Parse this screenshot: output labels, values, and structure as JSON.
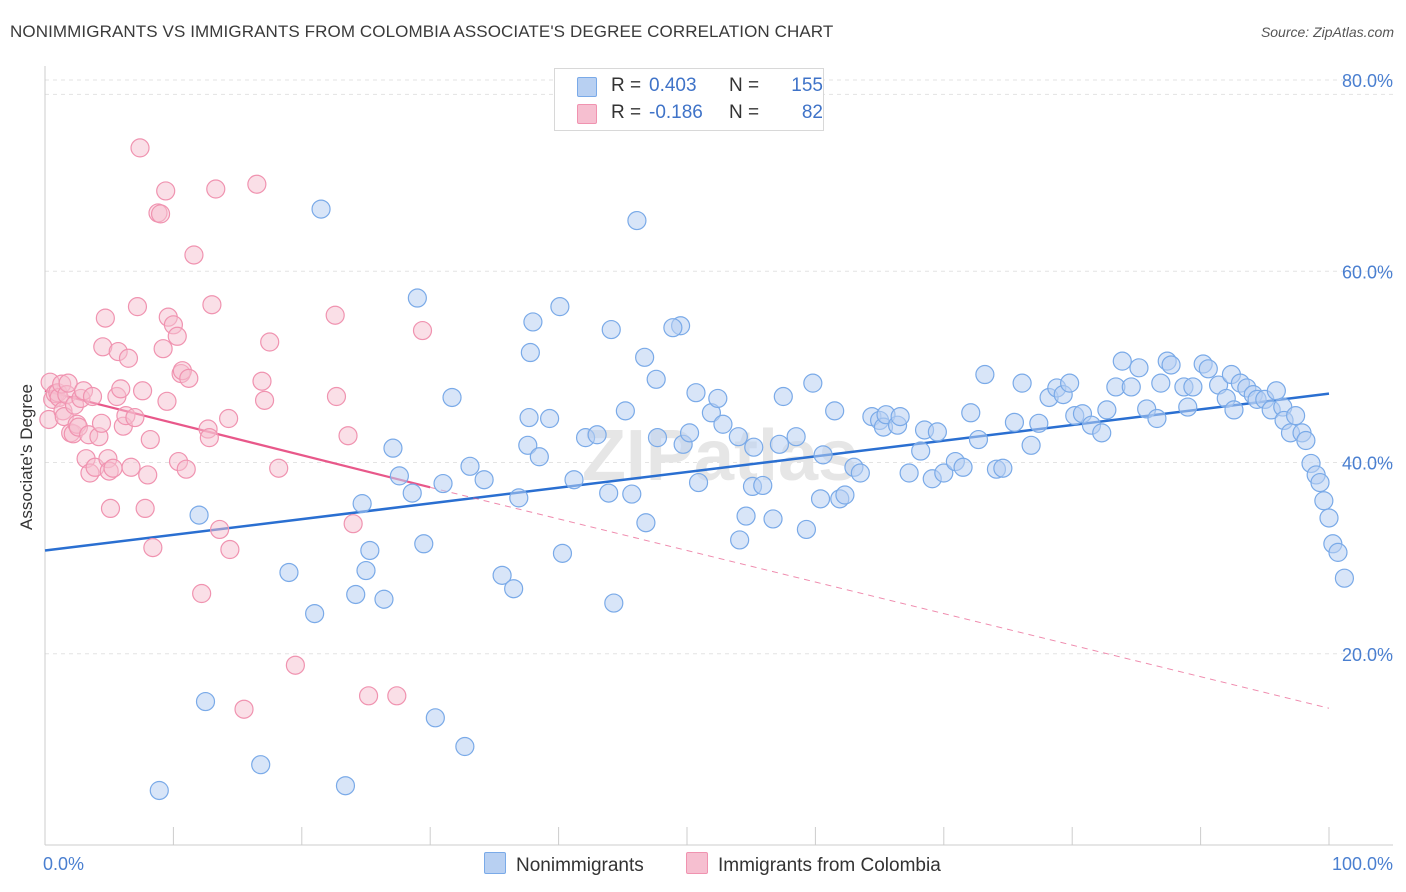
{
  "title": "NONIMMIGRANTS VS IMMIGRANTS FROM COLOMBIA ASSOCIATE'S DEGREE CORRELATION CHART",
  "source": "Source: ZipAtlas.com",
  "watermark": "ZIPatlas",
  "legend": {
    "rows": [
      {
        "r_label": "R =",
        "r_value": "0.403",
        "n_label": "N =",
        "n_value": "155",
        "color": "#b8d0f2"
      },
      {
        "r_label": "R =",
        "r_value": "-0.186",
        "n_label": "N =",
        "n_value": "82",
        "color": "#f6bfd0"
      }
    ]
  },
  "bottom_legend": {
    "series1": "Nonimmigrants",
    "series2": "Immigrants from Colombia"
  },
  "chart_data": {
    "type": "scatter",
    "title": "NONIMMIGRANTS VS IMMIGRANTS FROM COLOMBIA ASSOCIATE'S DEGREE CORRELATION CHART",
    "xlabel": "",
    "ylabel": "Associate's Degree",
    "xlim": [
      0,
      100
    ],
    "ylim": [
      0,
      80
    ],
    "x_tick_labels": [
      "0.0%",
      "100.0%"
    ],
    "y_ticks": [
      20,
      40,
      60,
      80
    ],
    "y_tick_labels": [
      "20.0%",
      "40.0%",
      "60.0%",
      "80.0%"
    ],
    "grid": true,
    "legend_position": "top-center",
    "colors": {
      "nonimmigrants": "#7aaae8",
      "nonimmigrants_fill": "#b8d0f2",
      "nonimmigrants_line": "#2a6fd1",
      "colombia": "#f093b0",
      "colombia_fill": "#f6bfd0",
      "colombia_line": "#e8588a"
    },
    "series": [
      {
        "name": "Nonimmigrants",
        "trend": {
          "x": [
            0,
            100
          ],
          "y": [
            30.8,
            47.2
          ]
        },
        "points": [
          [
            12,
            34.5
          ],
          [
            21.5,
            66.5
          ],
          [
            19,
            28.5
          ],
          [
            21,
            24.2
          ],
          [
            12.5,
            15
          ],
          [
            8.9,
            5.7
          ],
          [
            16.8,
            8.4
          ],
          [
            23.4,
            6.2
          ],
          [
            24.7,
            35.7
          ],
          [
            25.3,
            30.8
          ],
          [
            26.4,
            25.7
          ],
          [
            25,
            28.7
          ],
          [
            24.2,
            26.2
          ],
          [
            27.1,
            41.5
          ],
          [
            27.6,
            38.6
          ],
          [
            28.6,
            36.8
          ],
          [
            29.5,
            31.5
          ],
          [
            29,
            57.2
          ],
          [
            30.4,
            13.3
          ],
          [
            31,
            37.8
          ],
          [
            31.7,
            46.8
          ],
          [
            32.7,
            10.3
          ],
          [
            33.1,
            39.6
          ],
          [
            34.2,
            38.2
          ],
          [
            35.6,
            28.2
          ],
          [
            36.5,
            26.8
          ],
          [
            36.9,
            36.3
          ],
          [
            37.7,
            44.7
          ],
          [
            37.6,
            41.8
          ],
          [
            37.8,
            51.5
          ],
          [
            38,
            54.7
          ],
          [
            38.5,
            40.6
          ],
          [
            39.3,
            44.6
          ],
          [
            40.1,
            56.3
          ],
          [
            40.3,
            30.5
          ],
          [
            41.2,
            38.2
          ],
          [
            42.1,
            42.6
          ],
          [
            43,
            42.9
          ],
          [
            44.1,
            53.9
          ],
          [
            43.9,
            36.8
          ],
          [
            44.3,
            25.3
          ],
          [
            45.2,
            45.4
          ],
          [
            45.7,
            36.7
          ],
          [
            46.7,
            51
          ],
          [
            47.6,
            48.7
          ],
          [
            46.1,
            65.3
          ],
          [
            46.8,
            33.7
          ],
          [
            47.7,
            42.6
          ],
          [
            49.5,
            54.3
          ],
          [
            48.9,
            54.1
          ],
          [
            49.7,
            41.9
          ],
          [
            50.2,
            43.1
          ],
          [
            50.7,
            47.3
          ],
          [
            50.9,
            37.9
          ],
          [
            51.9,
            45.2
          ],
          [
            52.4,
            46.7
          ],
          [
            52.8,
            44
          ],
          [
            54,
            42.7
          ],
          [
            54.1,
            31.9
          ],
          [
            54.6,
            34.4
          ],
          [
            55.1,
            37.5
          ],
          [
            55.2,
            41.6
          ],
          [
            55.9,
            37.6
          ],
          [
            56.7,
            34.1
          ],
          [
            57.2,
            41.9
          ],
          [
            57.5,
            46.9
          ],
          [
            58.5,
            42.7
          ],
          [
            59.3,
            33
          ],
          [
            59.8,
            48.3
          ],
          [
            60.4,
            36.2
          ],
          [
            60.6,
            40.8
          ],
          [
            61.5,
            45.4
          ],
          [
            61.9,
            36.2
          ],
          [
            62.3,
            36.6
          ],
          [
            63,
            39.5
          ],
          [
            63.5,
            38.9
          ],
          [
            64.4,
            44.8
          ],
          [
            65,
            44.4
          ],
          [
            65.3,
            43.7
          ],
          [
            65.5,
            45
          ],
          [
            66.4,
            43.9
          ],
          [
            66.6,
            44.8
          ],
          [
            67.3,
            38.9
          ],
          [
            68.2,
            41.2
          ],
          [
            68.5,
            43.4
          ],
          [
            69.5,
            43.2
          ],
          [
            69.1,
            38.3
          ],
          [
            70,
            38.9
          ],
          [
            70.9,
            40.1
          ],
          [
            71.5,
            39.5
          ],
          [
            72.1,
            45.2
          ],
          [
            72.7,
            42.4
          ],
          [
            73.2,
            49.2
          ],
          [
            74.1,
            39.3
          ],
          [
            74.6,
            39.4
          ],
          [
            75.5,
            44.2
          ],
          [
            76.1,
            48.3
          ],
          [
            76.8,
            41.8
          ],
          [
            77.4,
            44.1
          ],
          [
            78.2,
            46.8
          ],
          [
            78.8,
            47.8
          ],
          [
            79.3,
            47.1
          ],
          [
            79.8,
            48.3
          ],
          [
            80.2,
            44.9
          ],
          [
            80.8,
            45.1
          ],
          [
            81.5,
            43.9
          ],
          [
            82.3,
            43.1
          ],
          [
            82.7,
            45.5
          ],
          [
            83.4,
            47.9
          ],
          [
            83.9,
            50.6
          ],
          [
            84.6,
            47.9
          ],
          [
            85.2,
            49.9
          ],
          [
            85.8,
            45.6
          ],
          [
            86.6,
            44.6
          ],
          [
            86.9,
            48.3
          ],
          [
            87.4,
            50.6
          ],
          [
            87.7,
            50.2
          ],
          [
            88.7,
            47.9
          ],
          [
            89,
            45.8
          ],
          [
            89.4,
            47.9
          ],
          [
            90.2,
            50.3
          ],
          [
            90.6,
            49.8
          ],
          [
            91.4,
            48.1
          ],
          [
            92,
            46.7
          ],
          [
            92.4,
            49.2
          ],
          [
            92.6,
            45.5
          ],
          [
            93.1,
            48.3
          ],
          [
            93.6,
            47.8
          ],
          [
            94.1,
            47.1
          ],
          [
            94.4,
            46.6
          ],
          [
            95,
            46.6
          ],
          [
            95.5,
            45.5
          ],
          [
            95.9,
            47.5
          ],
          [
            96.4,
            45.8
          ],
          [
            96.5,
            44.4
          ],
          [
            97,
            43.1
          ],
          [
            97.4,
            44.9
          ],
          [
            97.9,
            43.1
          ],
          [
            98.2,
            42.3
          ],
          [
            98.6,
            39.9
          ],
          [
            99,
            38.7
          ],
          [
            99.3,
            37.9
          ],
          [
            99.6,
            36
          ],
          [
            100,
            34.2
          ],
          [
            100.3,
            31.5
          ],
          [
            100.7,
            30.6
          ],
          [
            101.2,
            27.9
          ]
        ]
      },
      {
        "name": "Immigrants from Colombia",
        "trend": {
          "x": [
            0,
            30
          ],
          "y": [
            47.5,
            37.4
          ]
        },
        "trend_extension": {
          "x": [
            30,
            100
          ],
          "y": [
            37.4,
            14.3
          ]
        },
        "points": [
          [
            0.3,
            44.5
          ],
          [
            0.4,
            48.4
          ],
          [
            0.6,
            46.6
          ],
          [
            0.8,
            47.2
          ],
          [
            1,
            47.3
          ],
          [
            1.1,
            46.8
          ],
          [
            1.3,
            48.2
          ],
          [
            1.4,
            45.4
          ],
          [
            1.5,
            44.8
          ],
          [
            1.7,
            47.1
          ],
          [
            1.8,
            48.3
          ],
          [
            2,
            43.1
          ],
          [
            2.2,
            43
          ],
          [
            2.3,
            46
          ],
          [
            2.5,
            44
          ],
          [
            2.6,
            43.7
          ],
          [
            2.8,
            46.7
          ],
          [
            3,
            47.5
          ],
          [
            3.2,
            40.4
          ],
          [
            3.4,
            42.9
          ],
          [
            3.5,
            38.9
          ],
          [
            3.7,
            46.9
          ],
          [
            3.9,
            39.5
          ],
          [
            4.2,
            42.7
          ],
          [
            4.4,
            44.1
          ],
          [
            4.5,
            52.1
          ],
          [
            4.7,
            55.1
          ],
          [
            4.9,
            40.4
          ],
          [
            5,
            39.1
          ],
          [
            5.1,
            35.2
          ],
          [
            5.3,
            39.4
          ],
          [
            5.6,
            46.9
          ],
          [
            5.7,
            51.6
          ],
          [
            5.9,
            47.7
          ],
          [
            6.1,
            43.8
          ],
          [
            6.3,
            44.9
          ],
          [
            6.5,
            50.9
          ],
          [
            6.7,
            39.5
          ],
          [
            7,
            44.7
          ],
          [
            7.2,
            56.3
          ],
          [
            7.4,
            72.9
          ],
          [
            7.6,
            47.5
          ],
          [
            7.8,
            35.2
          ],
          [
            8,
            38.7
          ],
          [
            8.2,
            42.4
          ],
          [
            8.4,
            31.1
          ],
          [
            8.8,
            66.1
          ],
          [
            9,
            66
          ],
          [
            9.2,
            51.9
          ],
          [
            9.4,
            68.4
          ],
          [
            9.5,
            46.4
          ],
          [
            9.6,
            55.2
          ],
          [
            10,
            54.4
          ],
          [
            10.3,
            53.2
          ],
          [
            10.4,
            40.1
          ],
          [
            10.6,
            49.3
          ],
          [
            10.7,
            49.6
          ],
          [
            11,
            39.3
          ],
          [
            11.2,
            48.8
          ],
          [
            11.6,
            61.7
          ],
          [
            12.2,
            26.3
          ],
          [
            12.7,
            43.5
          ],
          [
            12.8,
            42.6
          ],
          [
            13,
            56.5
          ],
          [
            13.3,
            68.6
          ],
          [
            13.6,
            33
          ],
          [
            14.3,
            44.6
          ],
          [
            14.4,
            30.9
          ],
          [
            15.5,
            14.2
          ],
          [
            16.5,
            69.1
          ],
          [
            16.9,
            48.5
          ],
          [
            17.1,
            46.5
          ],
          [
            17.5,
            52.6
          ],
          [
            18.2,
            39.4
          ],
          [
            19.5,
            18.8
          ],
          [
            22.6,
            55.4
          ],
          [
            22.7,
            46.9
          ],
          [
            23.6,
            42.8
          ],
          [
            24,
            33.6
          ],
          [
            25.2,
            15.6
          ],
          [
            27.4,
            15.6
          ],
          [
            29.4,
            53.8
          ]
        ]
      }
    ]
  }
}
